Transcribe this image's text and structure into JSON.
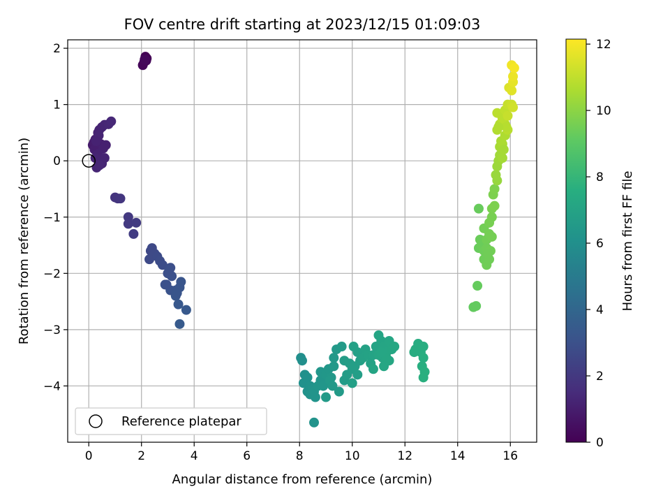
{
  "chart_data": {
    "type": "scatter",
    "title": "FOV centre drift starting at 2023/12/15 01:09:03",
    "xlabel": "Angular distance from reference (arcmin)",
    "ylabel": "Rotation from reference (arcmin)",
    "xlim": [
      -0.8,
      17.0
    ],
    "ylim": [
      -5.0,
      2.15
    ],
    "xticks": [
      0,
      2,
      4,
      6,
      8,
      10,
      12,
      14,
      16
    ],
    "yticks": [
      -4,
      -3,
      -2,
      -1,
      0,
      1,
      2
    ],
    "grid": true,
    "legend": {
      "position": "lower-left",
      "entries": [
        {
          "label": "Reference platepar",
          "marker": "open-circle"
        }
      ]
    },
    "reference_point": {
      "x": 0,
      "y": 0
    },
    "colorbar": {
      "label": "Hours from first FF file",
      "range": [
        0,
        12.15
      ],
      "ticks": [
        0,
        2,
        4,
        6,
        8,
        10,
        12
      ],
      "colormap": "viridis"
    },
    "series": [
      {
        "points": [
          [
            2.15,
            1.85,
            0.0
          ],
          [
            2.2,
            1.82,
            0.05
          ],
          [
            2.1,
            1.75,
            0.1
          ],
          [
            2.05,
            1.7,
            0.15
          ],
          [
            2.18,
            1.78,
            0.2
          ],
          [
            2.12,
            1.8,
            0.25
          ],
          [
            0.15,
            0.28,
            0.9
          ],
          [
            0.2,
            0.33,
            0.95
          ],
          [
            0.25,
            0.38,
            1.0
          ],
          [
            0.22,
            0.2,
            1.05
          ],
          [
            0.35,
            0.5,
            1.1
          ],
          [
            0.4,
            0.55,
            1.15
          ],
          [
            0.5,
            0.6,
            1.2
          ],
          [
            0.6,
            0.64,
            1.25
          ],
          [
            0.75,
            0.65,
            1.3
          ],
          [
            0.85,
            0.7,
            1.35
          ],
          [
            0.3,
            0.25,
            1.0
          ],
          [
            0.45,
            0.3,
            1.05
          ],
          [
            0.65,
            0.28,
            1.1
          ],
          [
            0.55,
            0.22,
            1.1
          ],
          [
            0.35,
            0.12,
            1.15
          ],
          [
            0.25,
            0.05,
            1.2
          ],
          [
            0.6,
            0.05,
            1.2
          ],
          [
            0.5,
            -0.05,
            1.25
          ],
          [
            0.3,
            -0.12,
            1.25
          ],
          [
            0.4,
            -0.08,
            1.3
          ],
          [
            0.38,
            0.45,
            1.2
          ],
          [
            0.28,
            0.35,
            1.15
          ],
          [
            1.0,
            -0.65,
            1.8
          ],
          [
            1.1,
            -0.67,
            1.85
          ],
          [
            1.2,
            -0.67,
            1.9
          ],
          [
            1.5,
            -1.0,
            2.0
          ],
          [
            1.5,
            -1.12,
            2.05
          ],
          [
            1.8,
            -1.1,
            2.1
          ],
          [
            1.7,
            -1.3,
            2.15
          ],
          [
            2.35,
            -1.6,
            2.6
          ],
          [
            2.4,
            -1.55,
            2.65
          ],
          [
            2.5,
            -1.65,
            2.7
          ],
          [
            2.3,
            -1.75,
            2.7
          ],
          [
            2.6,
            -1.7,
            2.75
          ],
          [
            2.7,
            -1.78,
            2.8
          ],
          [
            2.8,
            -1.85,
            2.85
          ],
          [
            3.1,
            -1.9,
            2.9
          ],
          [
            3.0,
            -2.0,
            2.95
          ],
          [
            3.15,
            -2.05,
            3.0
          ],
          [
            2.9,
            -2.2,
            3.05
          ],
          [
            3.1,
            -2.3,
            3.1
          ],
          [
            3.3,
            -2.3,
            3.15
          ],
          [
            3.45,
            -2.25,
            3.2
          ],
          [
            3.5,
            -2.15,
            3.2
          ],
          [
            3.3,
            -2.4,
            3.25
          ],
          [
            3.4,
            -2.55,
            3.3
          ],
          [
            3.7,
            -2.65,
            3.35
          ],
          [
            3.45,
            -2.9,
            3.4
          ],
          [
            2.95,
            -2.2,
            3.0
          ],
          [
            3.05,
            -1.95,
            2.95
          ],
          [
            3.35,
            -2.35,
            3.2
          ],
          [
            8.05,
            -3.5,
            6.0
          ],
          [
            8.1,
            -3.55,
            6.0
          ],
          [
            8.2,
            -3.8,
            6.05
          ],
          [
            8.15,
            -3.95,
            6.1
          ],
          [
            8.3,
            -3.85,
            6.1
          ],
          [
            8.4,
            -4.0,
            6.15
          ],
          [
            8.3,
            -4.1,
            6.15
          ],
          [
            8.5,
            -4.05,
            6.2
          ],
          [
            8.4,
            -4.15,
            6.2
          ],
          [
            8.6,
            -4.2,
            6.25
          ],
          [
            8.55,
            -4.1,
            6.25
          ],
          [
            8.7,
            -4.0,
            6.3
          ],
          [
            8.8,
            -3.9,
            6.3
          ],
          [
            8.9,
            -4.0,
            6.35
          ],
          [
            8.8,
            -3.75,
            6.35
          ],
          [
            9.0,
            -3.8,
            6.4
          ],
          [
            9.1,
            -3.7,
            6.4
          ],
          [
            9.2,
            -3.85,
            6.45
          ],
          [
            9.3,
            -3.65,
            6.45
          ],
          [
            9.15,
            -3.9,
            6.5
          ],
          [
            9.25,
            -4.0,
            6.5
          ],
          [
            9.0,
            -4.2,
            6.55
          ],
          [
            9.5,
            -4.1,
            6.55
          ],
          [
            8.55,
            -4.65,
            6.2
          ],
          [
            9.7,
            -3.9,
            6.6
          ],
          [
            9.8,
            -3.8,
            6.65
          ],
          [
            9.7,
            -3.55,
            6.65
          ],
          [
            9.9,
            -3.6,
            6.7
          ],
          [
            10.0,
            -3.7,
            6.7
          ],
          [
            10.1,
            -3.65,
            6.75
          ],
          [
            10.2,
            -3.8,
            6.75
          ],
          [
            10.0,
            -3.95,
            6.8
          ],
          [
            10.3,
            -3.55,
            6.8
          ],
          [
            10.2,
            -3.4,
            6.85
          ],
          [
            10.05,
            -3.3,
            6.85
          ],
          [
            9.4,
            -3.35,
            6.5
          ],
          [
            9.3,
            -3.5,
            6.45
          ],
          [
            9.6,
            -3.3,
            6.55
          ],
          [
            10.4,
            -3.5,
            6.9
          ],
          [
            10.5,
            -3.35,
            6.9
          ],
          [
            10.6,
            -3.45,
            6.95
          ],
          [
            10.7,
            -3.6,
            6.95
          ],
          [
            10.8,
            -3.45,
            7.0
          ],
          [
            10.9,
            -3.3,
            7.0
          ],
          [
            11.0,
            -3.1,
            7.05
          ],
          [
            11.1,
            -3.2,
            7.05
          ],
          [
            11.2,
            -3.3,
            7.1
          ],
          [
            11.15,
            -3.5,
            7.1
          ],
          [
            11.3,
            -3.4,
            7.15
          ],
          [
            11.4,
            -3.2,
            7.15
          ],
          [
            11.5,
            -3.35,
            7.2
          ],
          [
            11.4,
            -3.55,
            7.2
          ],
          [
            11.6,
            -3.3,
            7.25
          ],
          [
            11.2,
            -3.65,
            7.15
          ],
          [
            11.0,
            -3.45,
            7.1
          ],
          [
            10.8,
            -3.7,
            7.05
          ],
          [
            11.3,
            -3.5,
            7.2
          ],
          [
            11.1,
            -3.4,
            7.15
          ],
          [
            12.4,
            -3.35,
            7.5
          ],
          [
            12.5,
            -3.25,
            7.5
          ],
          [
            12.6,
            -3.4,
            7.55
          ],
          [
            12.7,
            -3.3,
            7.55
          ],
          [
            12.7,
            -3.5,
            7.6
          ],
          [
            12.65,
            -3.65,
            7.6
          ],
          [
            12.75,
            -3.75,
            7.65
          ],
          [
            12.7,
            -3.85,
            7.65
          ],
          [
            12.35,
            -3.4,
            7.5
          ],
          [
            14.6,
            -2.6,
            9.2
          ],
          [
            14.7,
            -2.58,
            9.2
          ],
          [
            14.75,
            -2.22,
            9.25
          ],
          [
            14.8,
            -1.55,
            9.3
          ],
          [
            14.85,
            -1.4,
            9.35
          ],
          [
            14.9,
            -1.5,
            9.35
          ],
          [
            15.0,
            -1.6,
            9.4
          ],
          [
            15.0,
            -1.75,
            9.4
          ],
          [
            15.1,
            -1.85,
            9.45
          ],
          [
            15.2,
            -1.75,
            9.45
          ],
          [
            15.1,
            -1.4,
            9.5
          ],
          [
            15.0,
            -1.2,
            9.5
          ],
          [
            15.2,
            -1.3,
            9.55
          ],
          [
            15.3,
            -1.35,
            9.55
          ],
          [
            15.2,
            -1.1,
            9.6
          ],
          [
            15.3,
            -1.0,
            9.6
          ],
          [
            15.3,
            -0.85,
            9.65
          ],
          [
            15.4,
            -0.8,
            9.7
          ],
          [
            15.35,
            -0.6,
            9.7
          ],
          [
            15.4,
            -0.5,
            9.75
          ],
          [
            14.8,
            -0.85,
            9.3
          ],
          [
            15.1,
            -1.55,
            9.45
          ],
          [
            15.25,
            -1.6,
            9.5
          ],
          [
            15.15,
            -1.65,
            9.45
          ],
          [
            15.5,
            -0.35,
            10.2
          ],
          [
            15.45,
            -0.25,
            10.25
          ],
          [
            15.5,
            -0.1,
            10.3
          ],
          [
            15.55,
            0.0,
            10.35
          ],
          [
            15.6,
            0.1,
            10.4
          ],
          [
            15.7,
            0.05,
            10.45
          ],
          [
            15.6,
            0.25,
            10.5
          ],
          [
            15.65,
            0.35,
            10.55
          ],
          [
            15.7,
            0.3,
            10.6
          ],
          [
            15.8,
            0.45,
            10.65
          ],
          [
            15.5,
            0.55,
            10.7
          ],
          [
            15.6,
            0.65,
            10.75
          ],
          [
            15.8,
            0.65,
            10.8
          ],
          [
            15.9,
            0.55,
            10.85
          ],
          [
            15.7,
            0.75,
            10.9
          ],
          [
            15.5,
            0.85,
            10.9
          ],
          [
            15.8,
            0.9,
            11.0
          ],
          [
            15.9,
            1.0,
            11.1
          ],
          [
            16.05,
            1.0,
            11.2
          ],
          [
            15.9,
            0.8,
            11.1
          ],
          [
            16.1,
            0.95,
            11.3
          ],
          [
            15.95,
            1.3,
            11.5
          ],
          [
            16.05,
            1.25,
            11.6
          ],
          [
            16.1,
            1.4,
            11.7
          ],
          [
            16.1,
            1.5,
            11.8
          ],
          [
            16.05,
            1.7,
            11.9
          ],
          [
            16.15,
            1.65,
            12.0
          ],
          [
            15.85,
            0.6,
            10.8
          ],
          [
            15.75,
            0.2,
            10.5
          ],
          [
            15.55,
            0.6,
            10.7
          ]
        ]
      }
    ]
  }
}
